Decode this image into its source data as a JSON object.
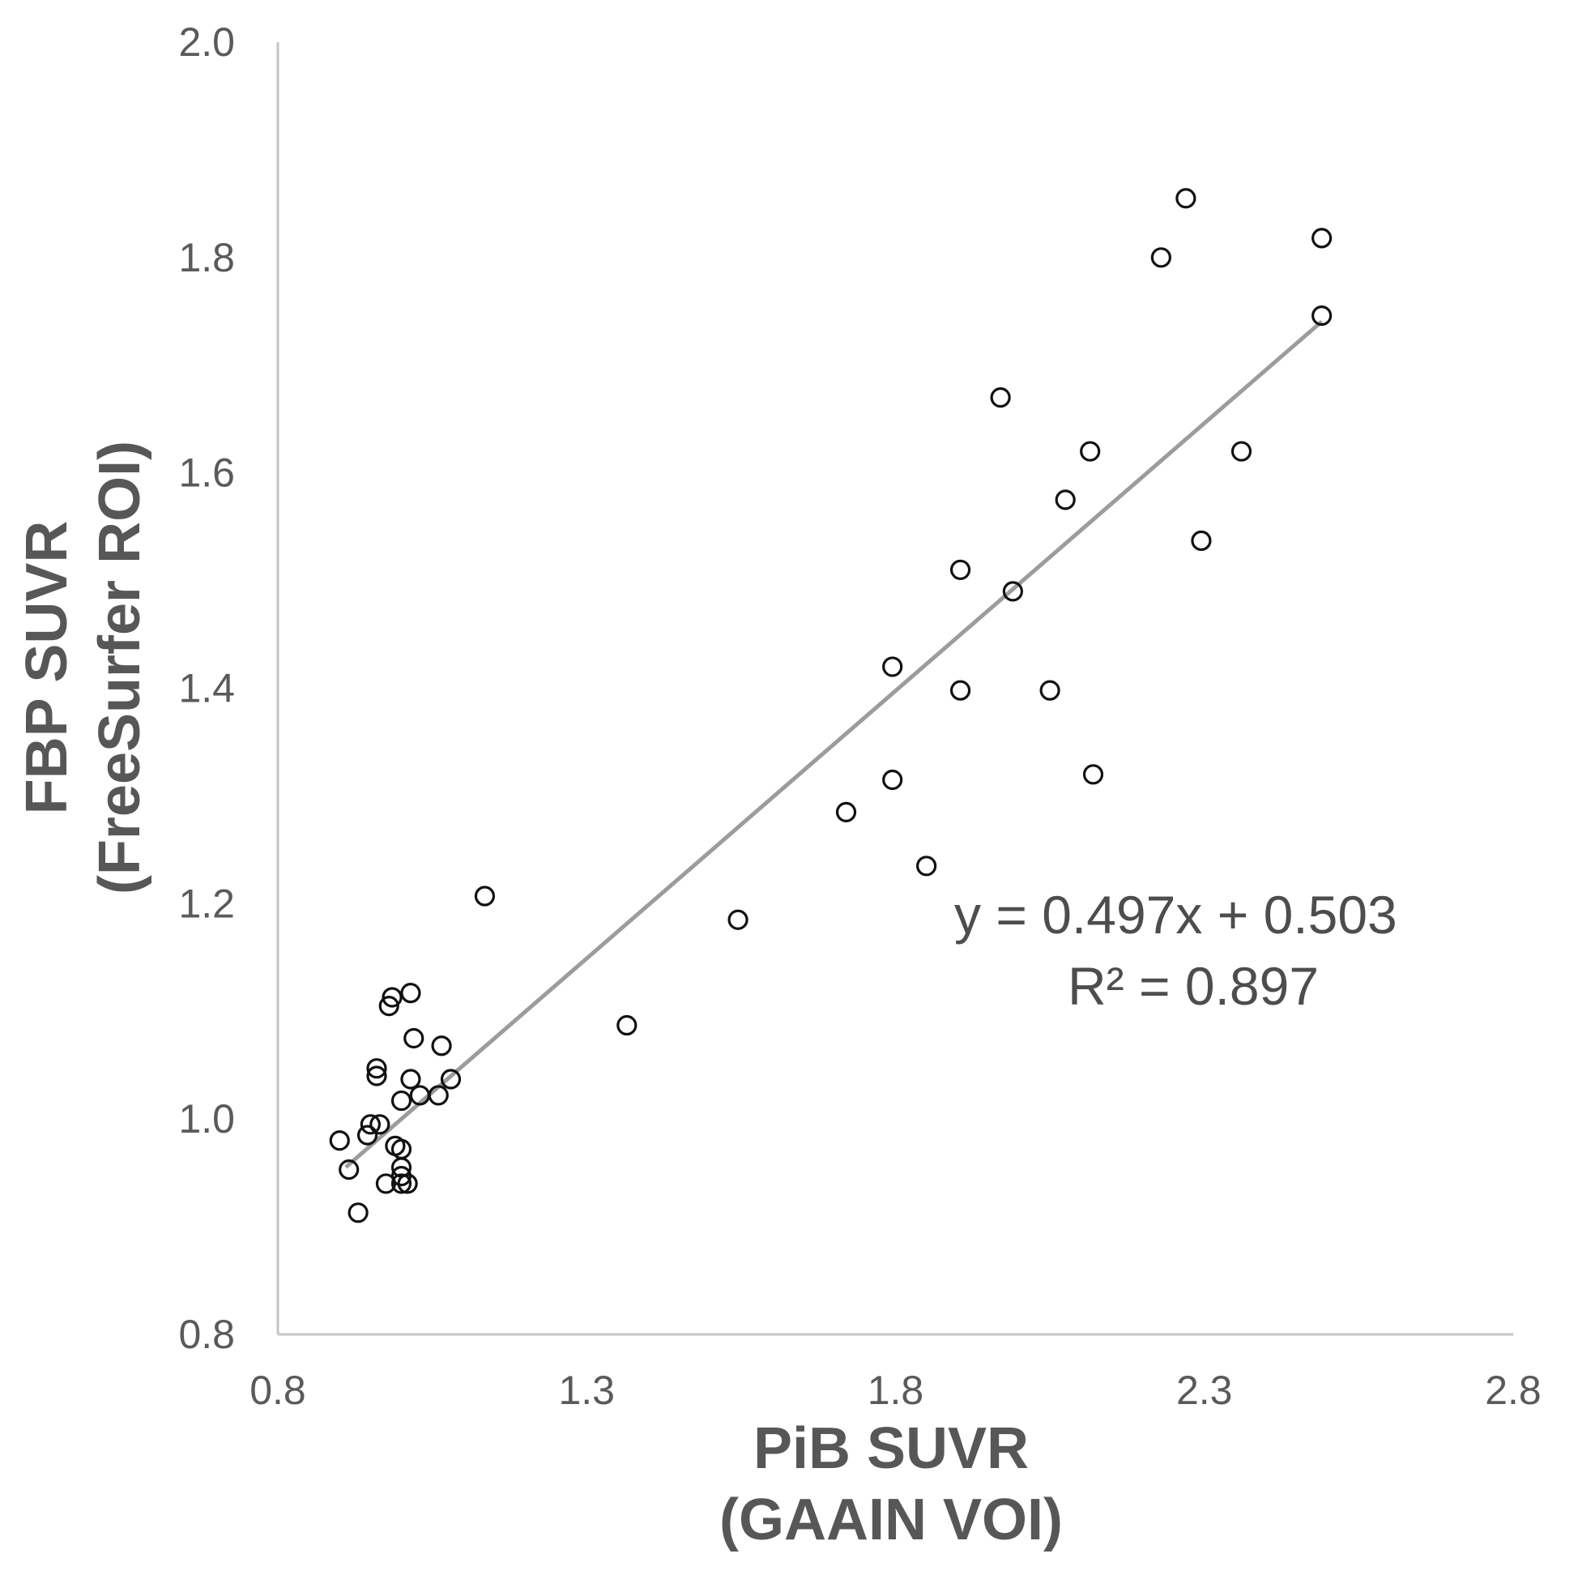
{
  "chart_data": {
    "type": "scatter",
    "xlabel_lines": [
      "PiB SUVR",
      "(GAAIN VOI)"
    ],
    "ylabel_lines": [
      "FBP SUVR",
      "(FreeSurfer ROI)"
    ],
    "xlim": [
      0.8,
      2.8
    ],
    "ylim": [
      0.8,
      2.0
    ],
    "xticks": [
      "0.8",
      "1.3",
      "1.8",
      "2.3",
      "2.8"
    ],
    "yticks": [
      "0.8",
      "1.0",
      "1.2",
      "1.4",
      "1.6",
      "1.8",
      "2.0"
    ],
    "trendline": {
      "slope": 0.497,
      "intercept": 0.503,
      "x_range": [
        0.91,
        2.49
      ]
    },
    "annotations": [
      "y = 0.497x + 0.503",
      "R² = 0.897"
    ],
    "points": [
      [
        0.9,
        0.98
      ],
      [
        0.915,
        0.953
      ],
      [
        0.93,
        0.913
      ],
      [
        0.945,
        0.985
      ],
      [
        0.95,
        0.995
      ],
      [
        0.96,
        1.04
      ],
      [
        0.96,
        1.047
      ],
      [
        0.965,
        0.995
      ],
      [
        0.975,
        0.94
      ],
      [
        0.98,
        1.105
      ],
      [
        0.985,
        1.113
      ],
      [
        0.99,
        0.975
      ],
      [
        1.0,
        0.972
      ],
      [
        1.0,
        1.017
      ],
      [
        1.0,
        0.955
      ],
      [
        1.0,
        0.947
      ],
      [
        1.0,
        0.94
      ],
      [
        1.01,
        0.94
      ],
      [
        1.015,
        1.037
      ],
      [
        1.015,
        1.117
      ],
      [
        1.02,
        1.075
      ],
      [
        1.03,
        1.022
      ],
      [
        1.06,
        1.022
      ],
      [
        1.065,
        1.068
      ],
      [
        1.08,
        1.037
      ],
      [
        1.135,
        1.207
      ],
      [
        1.365,
        1.087
      ],
      [
        1.545,
        1.185
      ],
      [
        1.72,
        1.285
      ],
      [
        1.795,
        1.42
      ],
      [
        1.795,
        1.315
      ],
      [
        1.85,
        1.235
      ],
      [
        1.905,
        1.398
      ],
      [
        1.905,
        1.51
      ],
      [
        1.97,
        1.67
      ],
      [
        1.99,
        1.49
      ],
      [
        2.05,
        1.398
      ],
      [
        2.075,
        1.575
      ],
      [
        2.115,
        1.62
      ],
      [
        2.12,
        1.32
      ],
      [
        2.23,
        1.8
      ],
      [
        2.27,
        1.855
      ],
      [
        2.295,
        1.537
      ],
      [
        2.36,
        1.62
      ],
      [
        2.49,
        1.818
      ],
      [
        2.49,
        1.746
      ]
    ]
  }
}
